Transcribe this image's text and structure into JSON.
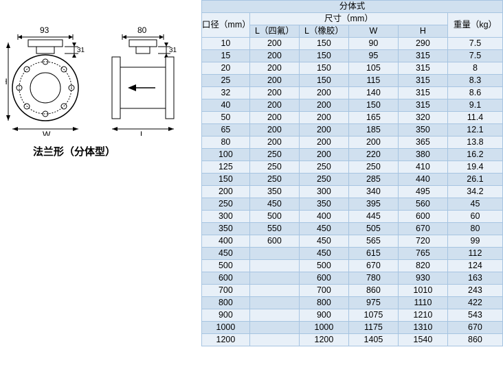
{
  "diagram": {
    "caption": "法兰形（分体型）",
    "labels": {
      "H": "H",
      "W": "W",
      "L": "L"
    },
    "dims": {
      "left_top": "93",
      "left_small": "31",
      "right_top": "80",
      "right_small": "31"
    }
  },
  "table": {
    "title": "分体式",
    "headers": {
      "diameter": "口径（mm）",
      "dim_group": "尺寸（mm）",
      "l_ptfe": "L（四氟）",
      "l_rubber": "L（橡胶）",
      "W": "W",
      "H": "H",
      "weight": "重量（kg）"
    },
    "rows": [
      {
        "d": "10",
        "l1": "200",
        "l2": "150",
        "w": "90",
        "h": "290",
        "wt": "7.5"
      },
      {
        "d": "15",
        "l1": "200",
        "l2": "150",
        "w": "95",
        "h": "315",
        "wt": "7.5"
      },
      {
        "d": "20",
        "l1": "200",
        "l2": "150",
        "w": "105",
        "h": "315",
        "wt": "8"
      },
      {
        "d": "25",
        "l1": "200",
        "l2": "150",
        "w": "115",
        "h": "315",
        "wt": "8.3"
      },
      {
        "d": "32",
        "l1": "200",
        "l2": "200",
        "w": "140",
        "h": "315",
        "wt": "8.6"
      },
      {
        "d": "40",
        "l1": "200",
        "l2": "200",
        "w": "150",
        "h": "315",
        "wt": "9.1"
      },
      {
        "d": "50",
        "l1": "200",
        "l2": "200",
        "w": "165",
        "h": "320",
        "wt": "11.4"
      },
      {
        "d": "65",
        "l1": "200",
        "l2": "200",
        "w": "185",
        "h": "350",
        "wt": "12.1"
      },
      {
        "d": "80",
        "l1": "200",
        "l2": "200",
        "w": "200",
        "h": "365",
        "wt": "13.8"
      },
      {
        "d": "100",
        "l1": "250",
        "l2": "200",
        "w": "220",
        "h": "380",
        "wt": "16.2"
      },
      {
        "d": "125",
        "l1": "250",
        "l2": "250",
        "w": "250",
        "h": "410",
        "wt": "19.4"
      },
      {
        "d": "150",
        "l1": "250",
        "l2": "250",
        "w": "285",
        "h": "440",
        "wt": "26.1"
      },
      {
        "d": "200",
        "l1": "350",
        "l2": "300",
        "w": "340",
        "h": "495",
        "wt": "34.2"
      },
      {
        "d": "250",
        "l1": "450",
        "l2": "350",
        "w": "395",
        "h": "560",
        "wt": "45"
      },
      {
        "d": "300",
        "l1": "500",
        "l2": "400",
        "w": "445",
        "h": "600",
        "wt": "60"
      },
      {
        "d": "350",
        "l1": "550",
        "l2": "450",
        "w": "505",
        "h": "670",
        "wt": "80"
      },
      {
        "d": "400",
        "l1": "600",
        "l2": "450",
        "w": "565",
        "h": "720",
        "wt": "99"
      },
      {
        "d": "450",
        "l1": "",
        "l2": "450",
        "w": "615",
        "h": "765",
        "wt": "112"
      },
      {
        "d": "500",
        "l1": "",
        "l2": "500",
        "w": "670",
        "h": "820",
        "wt": "124"
      },
      {
        "d": "600",
        "l1": "",
        "l2": "600",
        "w": "780",
        "h": "930",
        "wt": "163"
      },
      {
        "d": "700",
        "l1": "",
        "l2": "700",
        "w": "860",
        "h": "1010",
        "wt": "243"
      },
      {
        "d": "800",
        "l1": "",
        "l2": "800",
        "w": "975",
        "h": "1110",
        "wt": "422"
      },
      {
        "d": "900",
        "l1": "",
        "l2": "900",
        "w": "1075",
        "h": "1210",
        "wt": "543"
      },
      {
        "d": "1000",
        "l1": "",
        "l2": "1000",
        "w": "1175",
        "h": "1310",
        "wt": "670"
      },
      {
        "d": "1200",
        "l1": "",
        "l2": "1200",
        "w": "1405",
        "h": "1540",
        "wt": "860"
      }
    ],
    "colors": {
      "border": "#a6c4e1",
      "even": "#d0e0ef",
      "odd": "#e8f0f8"
    }
  }
}
